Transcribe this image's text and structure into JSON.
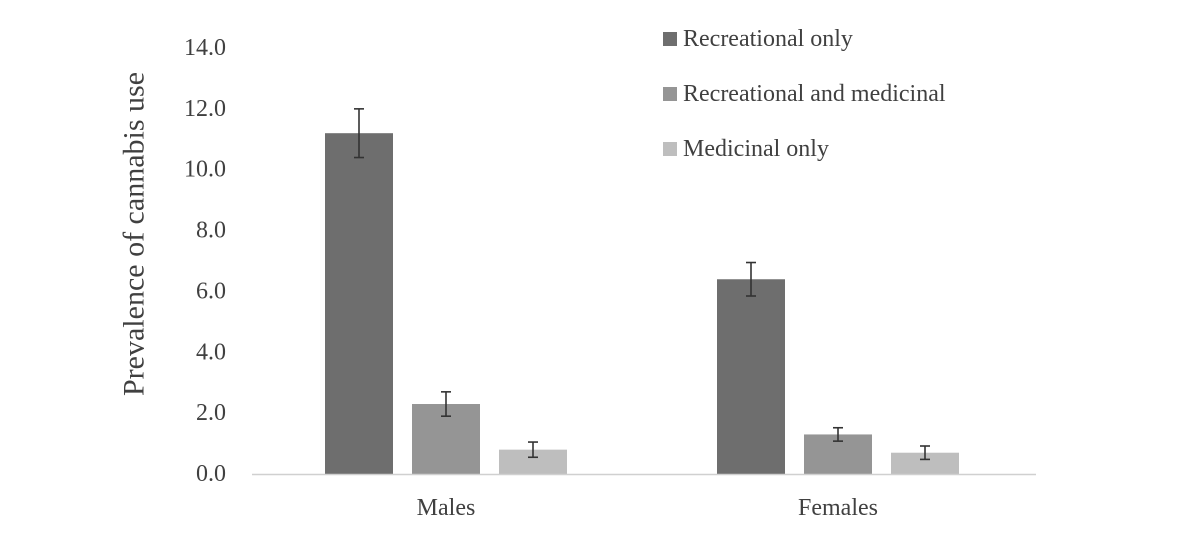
{
  "chart_data": {
    "type": "bar",
    "title": "",
    "xlabel": "",
    "ylabel": "Prevalence of cannabis use",
    "ylim": [
      0,
      14
    ],
    "ytick_labels": [
      "0.0",
      "2.0",
      "4.0",
      "6.0",
      "8.0",
      "10.0",
      "12.0",
      "14.0"
    ],
    "categories": [
      "Males",
      "Females"
    ],
    "series": [
      {
        "name": "Recreational only",
        "color": "#6e6e6e",
        "values": [
          11.2,
          6.4
        ],
        "error": [
          0.8,
          0.55
        ]
      },
      {
        "name": "Recreational and medicinal",
        "color": "#959595",
        "values": [
          2.3,
          1.3
        ],
        "error": [
          0.4,
          0.22
        ]
      },
      {
        "name": "Medicinal only",
        "color": "#bebebe",
        "values": [
          0.8,
          0.7
        ],
        "error": [
          0.25,
          0.22
        ]
      }
    ],
    "legend_position": "top-right",
    "grid": false
  }
}
